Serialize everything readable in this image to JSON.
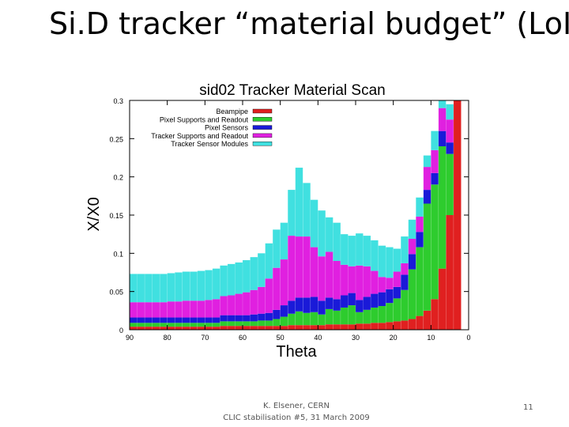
{
  "slide": {
    "title": "Si.D tracker “material budget” (LoI)",
    "footer_line1": "K. Elsener, CERN",
    "footer_line2": "CLIC stabilisation #5, 31 March 2009",
    "page_number": "11"
  },
  "chart_data": {
    "type": "bar",
    "stacked": true,
    "title": "sid02 Tracker Material Scan",
    "xlabel": "Theta",
    "ylabel": "X/X0",
    "xlim": [
      90,
      0
    ],
    "ylim": [
      0,
      0.3
    ],
    "xticks": [
      "90",
      "80",
      "70",
      "60",
      "50",
      "40",
      "30",
      "20",
      "10",
      "0"
    ],
    "yticks": [
      "0",
      "0.05",
      "0.1",
      "0.15",
      "0.2",
      "0.25",
      "0.3"
    ],
    "legend_position": "top-left",
    "colors": {
      "Beampipe": "#e02020",
      "Pixel Supports and Readout": "#2ecc2e",
      "Pixel Sensors": "#1a1ad8",
      "Tracker Supports and Readout": "#e020e0",
      "Tracker Sensor Modules": "#40e0e0"
    },
    "theta": [
      89,
      87,
      85,
      83,
      81,
      79,
      77,
      75,
      73,
      71,
      69,
      67,
      65,
      63,
      61,
      59,
      57,
      55,
      53,
      51,
      49,
      47,
      45,
      43,
      41,
      39,
      37,
      35,
      33,
      31,
      29,
      27,
      25,
      23,
      21,
      19,
      17,
      15,
      13,
      11,
      9,
      7,
      5,
      3
    ],
    "series": [
      {
        "name": "Beampipe",
        "values": [
          0.004,
          0.004,
          0.004,
          0.004,
          0.004,
          0.004,
          0.004,
          0.004,
          0.004,
          0.004,
          0.004,
          0.004,
          0.005,
          0.005,
          0.005,
          0.005,
          0.005,
          0.005,
          0.005,
          0.005,
          0.005,
          0.006,
          0.006,
          0.006,
          0.006,
          0.006,
          0.007,
          0.007,
          0.007,
          0.007,
          0.008,
          0.008,
          0.009,
          0.009,
          0.01,
          0.011,
          0.012,
          0.014,
          0.018,
          0.025,
          0.04,
          0.08,
          0.15,
          0.3
        ]
      },
      {
        "name": "Pixel Supports and Readout",
        "values": [
          0.005,
          0.005,
          0.005,
          0.005,
          0.005,
          0.005,
          0.005,
          0.005,
          0.005,
          0.005,
          0.005,
          0.005,
          0.006,
          0.006,
          0.006,
          0.006,
          0.006,
          0.007,
          0.007,
          0.009,
          0.012,
          0.015,
          0.018,
          0.016,
          0.017,
          0.014,
          0.02,
          0.018,
          0.022,
          0.025,
          0.015,
          0.018,
          0.02,
          0.022,
          0.025,
          0.03,
          0.04,
          0.065,
          0.09,
          0.14,
          0.15,
          0.16,
          0.08,
          0.0
        ]
      },
      {
        "name": "Pixel Sensors",
        "values": [
          0.007,
          0.007,
          0.007,
          0.007,
          0.007,
          0.007,
          0.007,
          0.007,
          0.007,
          0.007,
          0.007,
          0.007,
          0.008,
          0.008,
          0.008,
          0.008,
          0.009,
          0.009,
          0.01,
          0.012,
          0.015,
          0.017,
          0.018,
          0.02,
          0.02,
          0.018,
          0.015,
          0.015,
          0.016,
          0.016,
          0.016,
          0.017,
          0.018,
          0.018,
          0.018,
          0.015,
          0.02,
          0.02,
          0.02,
          0.018,
          0.015,
          0.02,
          0.015,
          0.0
        ]
      },
      {
        "name": "Tracker Supports and Readout",
        "values": [
          0.02,
          0.02,
          0.02,
          0.02,
          0.02,
          0.021,
          0.021,
          0.022,
          0.022,
          0.022,
          0.023,
          0.024,
          0.025,
          0.026,
          0.028,
          0.03,
          0.032,
          0.035,
          0.045,
          0.055,
          0.06,
          0.085,
          0.08,
          0.08,
          0.065,
          0.058,
          0.06,
          0.05,
          0.04,
          0.035,
          0.045,
          0.04,
          0.03,
          0.02,
          0.015,
          0.02,
          0.015,
          0.02,
          0.02,
          0.03,
          0.03,
          0.03,
          0.03,
          0.0
        ]
      },
      {
        "name": "Tracker Sensor Modules",
        "values": [
          0.037,
          0.037,
          0.037,
          0.037,
          0.037,
          0.037,
          0.038,
          0.038,
          0.038,
          0.039,
          0.039,
          0.04,
          0.04,
          0.041,
          0.041,
          0.042,
          0.043,
          0.044,
          0.046,
          0.05,
          0.048,
          0.06,
          0.09,
          0.07,
          0.062,
          0.06,
          0.045,
          0.05,
          0.04,
          0.04,
          0.042,
          0.04,
          0.04,
          0.041,
          0.04,
          0.03,
          0.035,
          0.025,
          0.025,
          0.015,
          0.025,
          0.025,
          0.02,
          0.0
        ]
      }
    ]
  }
}
